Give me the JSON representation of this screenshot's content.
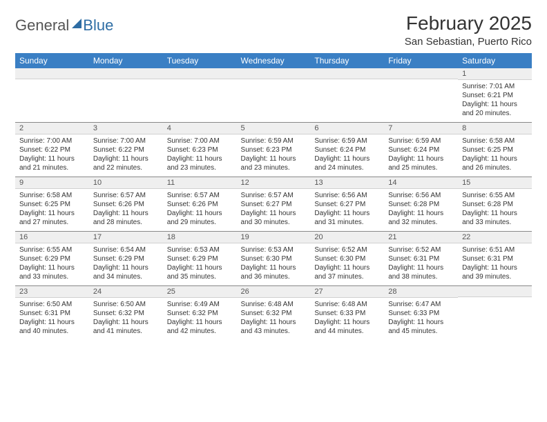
{
  "logo": {
    "text1": "General",
    "text2": "Blue"
  },
  "title": "February 2025",
  "location": "San Sebastian, Puerto Rico",
  "colors": {
    "header_bg": "#3a7fc4",
    "header_text": "#ffffff",
    "daynum_bg": "#efefef",
    "border": "#888888",
    "logo_gray": "#555555",
    "logo_blue": "#2e6da4"
  },
  "fonts": {
    "title_size": 28,
    "location_size": 15,
    "header_size": 12,
    "daynum_size": 11,
    "body_size": 10
  },
  "weekdays": [
    "Sunday",
    "Monday",
    "Tuesday",
    "Wednesday",
    "Thursday",
    "Friday",
    "Saturday"
  ],
  "weeks": [
    [
      {
        "n": "",
        "t": ""
      },
      {
        "n": "",
        "t": ""
      },
      {
        "n": "",
        "t": ""
      },
      {
        "n": "",
        "t": ""
      },
      {
        "n": "",
        "t": ""
      },
      {
        "n": "",
        "t": ""
      },
      {
        "n": "1",
        "t": "Sunrise: 7:01 AM\nSunset: 6:21 PM\nDaylight: 11 hours and 20 minutes."
      }
    ],
    [
      {
        "n": "2",
        "t": "Sunrise: 7:00 AM\nSunset: 6:22 PM\nDaylight: 11 hours and 21 minutes."
      },
      {
        "n": "3",
        "t": "Sunrise: 7:00 AM\nSunset: 6:22 PM\nDaylight: 11 hours and 22 minutes."
      },
      {
        "n": "4",
        "t": "Sunrise: 7:00 AM\nSunset: 6:23 PM\nDaylight: 11 hours and 23 minutes."
      },
      {
        "n": "5",
        "t": "Sunrise: 6:59 AM\nSunset: 6:23 PM\nDaylight: 11 hours and 23 minutes."
      },
      {
        "n": "6",
        "t": "Sunrise: 6:59 AM\nSunset: 6:24 PM\nDaylight: 11 hours and 24 minutes."
      },
      {
        "n": "7",
        "t": "Sunrise: 6:59 AM\nSunset: 6:24 PM\nDaylight: 11 hours and 25 minutes."
      },
      {
        "n": "8",
        "t": "Sunrise: 6:58 AM\nSunset: 6:25 PM\nDaylight: 11 hours and 26 minutes."
      }
    ],
    [
      {
        "n": "9",
        "t": "Sunrise: 6:58 AM\nSunset: 6:25 PM\nDaylight: 11 hours and 27 minutes."
      },
      {
        "n": "10",
        "t": "Sunrise: 6:57 AM\nSunset: 6:26 PM\nDaylight: 11 hours and 28 minutes."
      },
      {
        "n": "11",
        "t": "Sunrise: 6:57 AM\nSunset: 6:26 PM\nDaylight: 11 hours and 29 minutes."
      },
      {
        "n": "12",
        "t": "Sunrise: 6:57 AM\nSunset: 6:27 PM\nDaylight: 11 hours and 30 minutes."
      },
      {
        "n": "13",
        "t": "Sunrise: 6:56 AM\nSunset: 6:27 PM\nDaylight: 11 hours and 31 minutes."
      },
      {
        "n": "14",
        "t": "Sunrise: 6:56 AM\nSunset: 6:28 PM\nDaylight: 11 hours and 32 minutes."
      },
      {
        "n": "15",
        "t": "Sunrise: 6:55 AM\nSunset: 6:28 PM\nDaylight: 11 hours and 33 minutes."
      }
    ],
    [
      {
        "n": "16",
        "t": "Sunrise: 6:55 AM\nSunset: 6:29 PM\nDaylight: 11 hours and 33 minutes."
      },
      {
        "n": "17",
        "t": "Sunrise: 6:54 AM\nSunset: 6:29 PM\nDaylight: 11 hours and 34 minutes."
      },
      {
        "n": "18",
        "t": "Sunrise: 6:53 AM\nSunset: 6:29 PM\nDaylight: 11 hours and 35 minutes."
      },
      {
        "n": "19",
        "t": "Sunrise: 6:53 AM\nSunset: 6:30 PM\nDaylight: 11 hours and 36 minutes."
      },
      {
        "n": "20",
        "t": "Sunrise: 6:52 AM\nSunset: 6:30 PM\nDaylight: 11 hours and 37 minutes."
      },
      {
        "n": "21",
        "t": "Sunrise: 6:52 AM\nSunset: 6:31 PM\nDaylight: 11 hours and 38 minutes."
      },
      {
        "n": "22",
        "t": "Sunrise: 6:51 AM\nSunset: 6:31 PM\nDaylight: 11 hours and 39 minutes."
      }
    ],
    [
      {
        "n": "23",
        "t": "Sunrise: 6:50 AM\nSunset: 6:31 PM\nDaylight: 11 hours and 40 minutes."
      },
      {
        "n": "24",
        "t": "Sunrise: 6:50 AM\nSunset: 6:32 PM\nDaylight: 11 hours and 41 minutes."
      },
      {
        "n": "25",
        "t": "Sunrise: 6:49 AM\nSunset: 6:32 PM\nDaylight: 11 hours and 42 minutes."
      },
      {
        "n": "26",
        "t": "Sunrise: 6:48 AM\nSunset: 6:32 PM\nDaylight: 11 hours and 43 minutes."
      },
      {
        "n": "27",
        "t": "Sunrise: 6:48 AM\nSunset: 6:33 PM\nDaylight: 11 hours and 44 minutes."
      },
      {
        "n": "28",
        "t": "Sunrise: 6:47 AM\nSunset: 6:33 PM\nDaylight: 11 hours and 45 minutes."
      },
      {
        "n": "",
        "t": ""
      }
    ]
  ]
}
